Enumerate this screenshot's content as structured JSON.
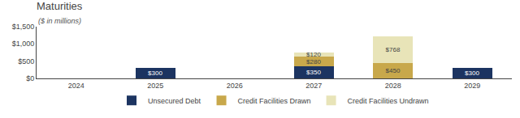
{
  "chart_data": {
    "type": "bar",
    "title": "Maturities",
    "subtitle": "($ in millions)",
    "categories": [
      "2024",
      "2025",
      "2026",
      "2027",
      "2028",
      "2029"
    ],
    "series": [
      {
        "name": "Unsecured Debt",
        "color": "#1c3461",
        "values": [
          0,
          300,
          0,
          350,
          0,
          300
        ],
        "value_labels": [
          null,
          "$300",
          null,
          "$350",
          null,
          "$300"
        ]
      },
      {
        "name": "Credit Facilities Drawn",
        "color": "#c8a84b",
        "values": [
          0,
          0,
          0,
          280,
          450,
          0
        ],
        "value_labels": [
          null,
          null,
          null,
          "$280",
          "$450",
          null
        ]
      },
      {
        "name": "Credit Facilities Undrawn",
        "color": "#e8e4b8",
        "values": [
          0,
          0,
          0,
          120,
          768,
          0
        ],
        "value_labels": [
          null,
          null,
          null,
          "$120",
          "$768",
          null
        ]
      }
    ],
    "stacked": true,
    "data_labels": true,
    "ylim": [
      0,
      1500
    ],
    "yticks": [
      {
        "value": 0,
        "label": "$0"
      },
      {
        "value": 500,
        "label": "$500"
      },
      {
        "value": 1000,
        "label": "$1,000"
      },
      {
        "value": 1500,
        "label": "$1,500"
      }
    ],
    "grid": false,
    "legend": "bottom"
  }
}
